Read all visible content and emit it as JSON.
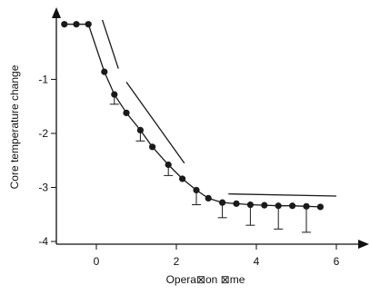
{
  "chart_data": {
    "type": "line",
    "title": "",
    "xlabel": "Opera⊠on ⊠me",
    "ylabel": "Core temperature change",
    "xlim": [
      -1,
      6.5
    ],
    "ylim": [
      -4.05,
      0.2
    ],
    "xticks": [
      0,
      2,
      4,
      6
    ],
    "xtick_labels": [
      "0",
      "2",
      "4",
      "6"
    ],
    "yticks": [
      -1,
      -2,
      -3,
      -4
    ],
    "ytick_labels": [
      "-1",
      "-2",
      "-3",
      "-4"
    ],
    "grid": false,
    "legend": "none",
    "series": [
      {
        "x": [
          -0.8,
          -0.5,
          -0.2,
          0.2,
          0.45,
          0.75,
          1.1,
          1.4,
          1.8,
          2.15,
          2.5,
          2.8,
          3.15,
          3.5,
          3.85,
          4.2,
          4.55,
          4.9,
          5.25,
          5.6
        ],
        "y": [
          0.02,
          0.02,
          0.02,
          -0.86,
          -1.28,
          -1.62,
          -1.94,
          -2.25,
          -2.58,
          -2.84,
          -3.05,
          -3.2,
          -3.28,
          -3.3,
          -3.32,
          -3.33,
          -3.34,
          -3.34,
          -3.35,
          -3.36
        ],
        "error_up": [
          0,
          0,
          0,
          0,
          0,
          0,
          0,
          0,
          0,
          0,
          0,
          0,
          0,
          0,
          0,
          0,
          0,
          0,
          0,
          0
        ],
        "error_down": [
          0,
          0,
          0,
          0,
          0.18,
          0,
          0.2,
          0,
          0.2,
          0,
          0.27,
          0,
          0.28,
          0,
          0.38,
          0,
          0.43,
          0,
          0.48,
          0
        ]
      }
    ],
    "trend_segments": [
      {
        "x": [
          0.15,
          0.55
        ],
        "y": [
          0.1,
          -0.8
        ]
      },
      {
        "x": [
          0.75,
          2.2
        ],
        "y": [
          -1.05,
          -2.55
        ]
      },
      {
        "x": [
          3.3,
          6.0
        ],
        "y": [
          -3.12,
          -3.16
        ]
      }
    ]
  }
}
